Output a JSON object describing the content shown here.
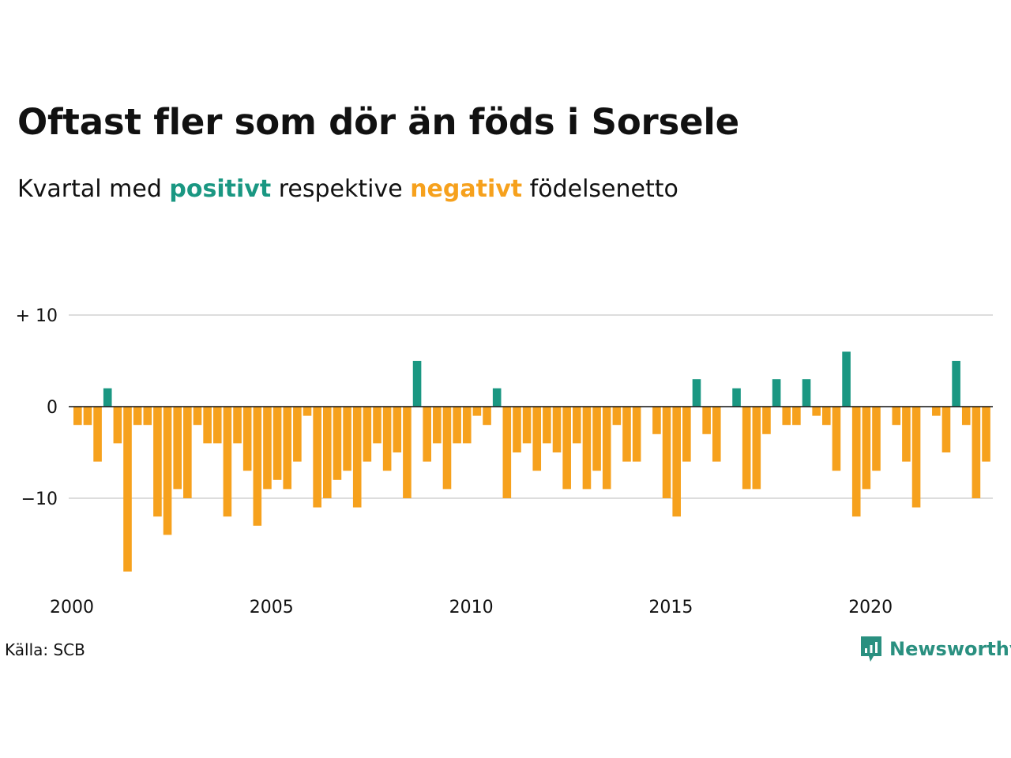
{
  "title": "Oftast fler som dör än föds i Sorsele",
  "subtitle": {
    "prefix": "Kvartal med ",
    "positive_word": "positivt",
    "middle": " respektive ",
    "negative_word": "negativt",
    "suffix": " födelsenetto"
  },
  "colors": {
    "positive": "#1a9782",
    "negative": "#f6a11d",
    "gridline": "#dddddd",
    "zero_line": "#111111",
    "brand": "#2a9080"
  },
  "source": "Källa: SCB",
  "brand": {
    "name": "Newsworthy",
    "icon": "newsworthy-logo-icon"
  },
  "chart_data": {
    "type": "bar",
    "x_start": "2000 Q1",
    "x_end": "2022 Q4",
    "x_ticks": [
      {
        "value": 2000,
        "label": "2000"
      },
      {
        "value": 2005,
        "label": "2005"
      },
      {
        "value": 2010,
        "label": "2010"
      },
      {
        "value": 2015,
        "label": "2015"
      },
      {
        "value": 2020,
        "label": "2020"
      }
    ],
    "y_ticks": [
      {
        "value": 10,
        "label": "+ 10"
      },
      {
        "value": 0,
        "label": "0"
      },
      {
        "value": -10,
        "label": "−10"
      }
    ],
    "ylim": [
      -18,
      10
    ],
    "grid": true,
    "series": [
      {
        "name": "födelsenetto",
        "values": [
          -2,
          -2,
          -6,
          2,
          -4,
          -18,
          -2,
          -2,
          -12,
          -14,
          -9,
          -10,
          -2,
          -4,
          -4,
          -12,
          -4,
          -7,
          -13,
          -9,
          -8,
          -9,
          -6,
          -1,
          -11,
          -10,
          -8,
          -7,
          -11,
          -6,
          -4,
          -7,
          -5,
          -10,
          5,
          -6,
          -4,
          -9,
          -4,
          -4,
          -1,
          -2,
          2,
          -10,
          -5,
          -4,
          -7,
          -4,
          -5,
          -9,
          -4,
          -9,
          -7,
          -9,
          -2,
          -6,
          -6,
          0,
          -3,
          -10,
          -12,
          -6,
          3,
          -3,
          -6,
          0,
          2,
          -9,
          -9,
          -3,
          3,
          -2,
          -2,
          3,
          -1,
          -2,
          -7,
          6,
          -12,
          -9,
          -7,
          0,
          -2,
          -6,
          -11,
          0,
          -1,
          -5,
          5,
          -2,
          -10,
          -6
        ]
      }
    ]
  }
}
